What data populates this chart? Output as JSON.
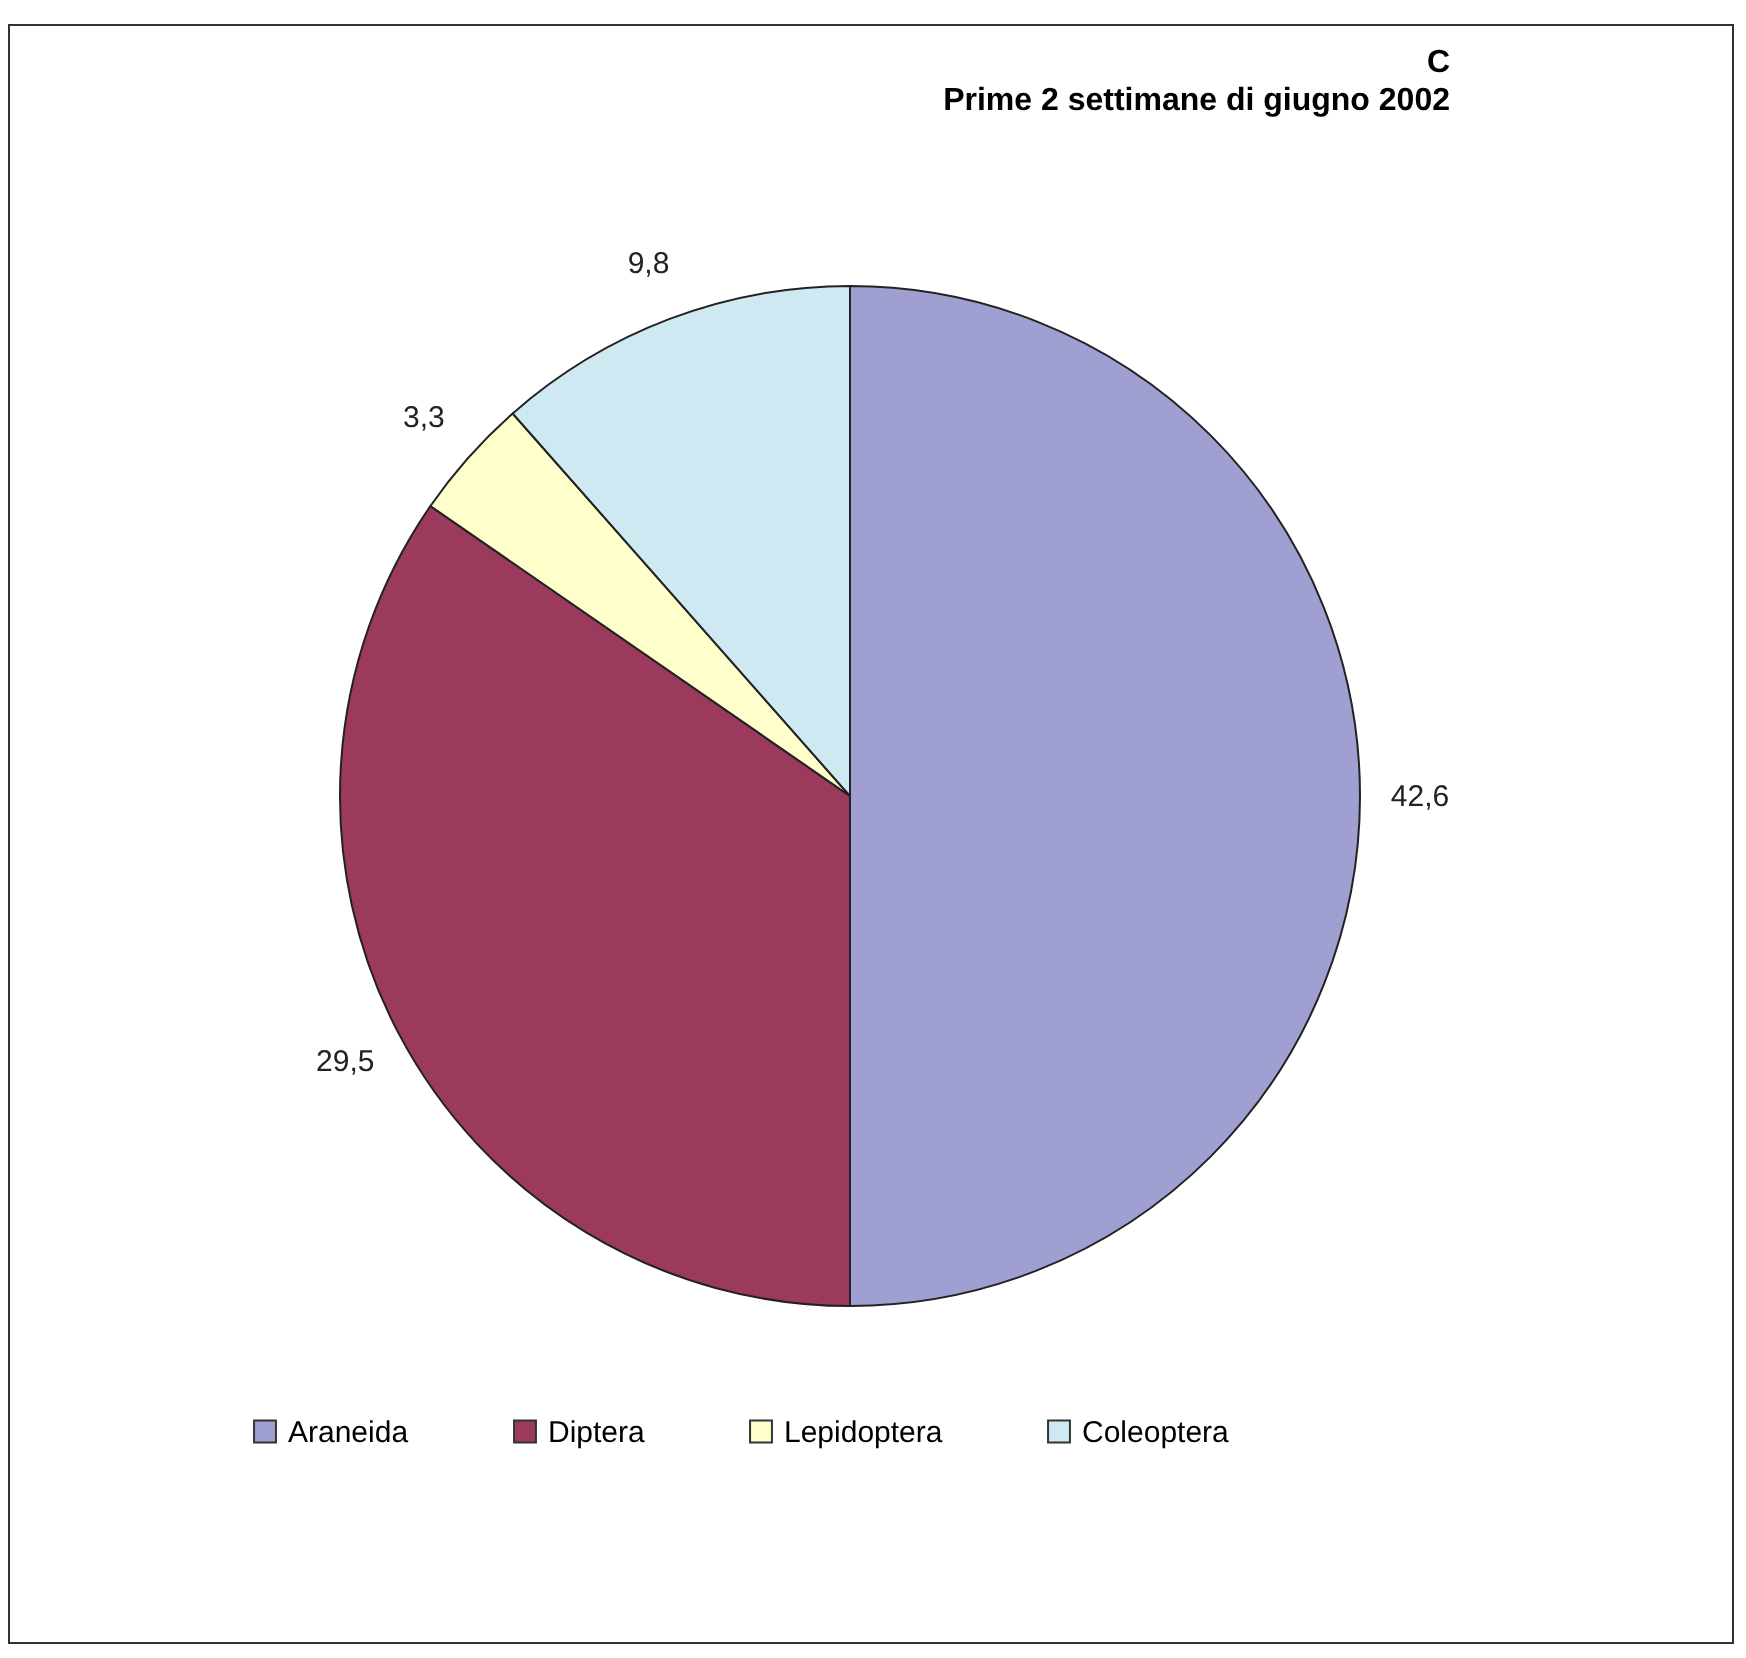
{
  "chart_data": {
    "type": "pie",
    "title": "C",
    "subtitle": "Prime 2 settimane di giugno 2002",
    "categories": [
      "Araneida",
      "Diptera",
      "Lepidoptera",
      "Coleoptera"
    ],
    "values": [
      42.6,
      29.5,
      3.3,
      9.8
    ],
    "value_labels": [
      "42,6",
      "29,5",
      "3,3",
      "9,8"
    ],
    "colors": [
      "#9f9fd2",
      "#9c3a5e",
      "#ffffcc",
      "#cfe9f2"
    ],
    "legend": "bottom"
  }
}
